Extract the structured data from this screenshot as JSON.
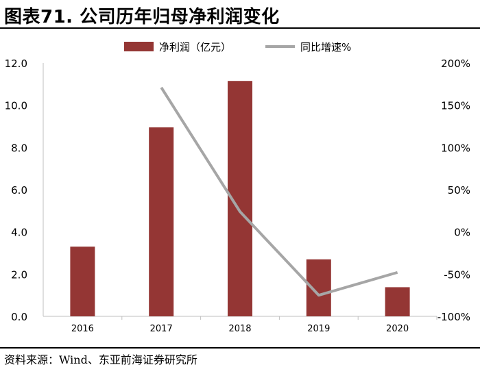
{
  "header": {
    "title": "图表71. 公司历年归母净利润变化"
  },
  "footer": {
    "source": "资料来源：Wind、东亚前海证券研究所"
  },
  "colors": {
    "bar": "#943634",
    "line": "#A6A6A6",
    "axis": "#BFBFBF"
  },
  "chart_data": {
    "type": "bar",
    "categories": [
      "2016",
      "2017",
      "2018",
      "2019",
      "2020"
    ],
    "series": [
      {
        "name": "净利润（亿元）",
        "type": "bar",
        "axis": "left",
        "values": [
          3.3,
          8.95,
          11.15,
          2.7,
          1.38
        ]
      },
      {
        "name": "同比增速%",
        "type": "line",
        "axis": "right",
        "values": [
          null,
          171,
          24,
          -75,
          -48
        ]
      }
    ],
    "y_left": {
      "ylim": [
        0,
        12
      ],
      "ticks": [
        "0.0",
        "2.0",
        "4.0",
        "6.0",
        "8.0",
        "10.0",
        "12.0"
      ]
    },
    "y_right": {
      "ylim": [
        -100,
        200
      ],
      "ticks": [
        "-100%",
        "-50%",
        "0%",
        "50%",
        "100%",
        "150%",
        "200%"
      ]
    },
    "grid": false,
    "legend": "top-center"
  }
}
